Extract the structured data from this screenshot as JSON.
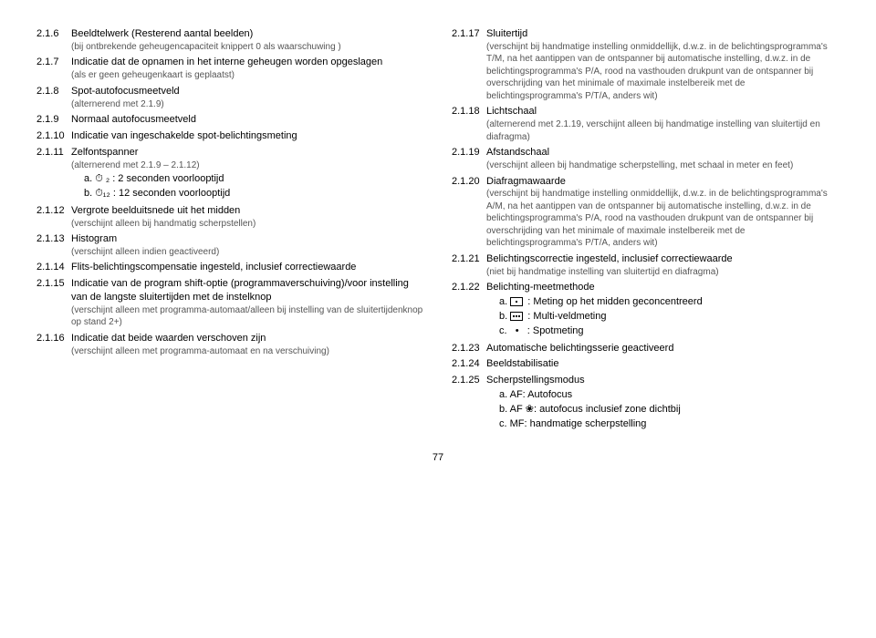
{
  "left": [
    {
      "n": "2.1.6",
      "t": "Beeldtelwerk (Resterend aantal beelden)",
      "s": "(bij ontbrekende geheugencapaciteit knippert 0 als waarschuwing )"
    },
    {
      "n": "2.1.7",
      "t": "Indicatie dat de opnamen in het interne geheugen worden opgeslagen",
      "s": "(als er geen geheugenkaart is geplaatst)"
    },
    {
      "n": "2.1.8",
      "t": "Spot-autofocusmeetveld",
      "s": "(alternerend met 2.1.9)"
    },
    {
      "n": "2.1.9",
      "t": "Normaal autofocusmeetveld"
    },
    {
      "n": "2.1.10",
      "t": "Indicatie van ingeschakelde spot-belichtingsmeting"
    },
    {
      "n": "2.1.11",
      "t": "Zelfontspanner",
      "s": "(alternerend met 2.1.9 – 2.1.12)",
      "lines": [
        "a. ⏱ ₂ : 2 seconden voorlooptijd",
        "b. ⏱₁₂ : 12 seconden voorlooptijd"
      ]
    },
    {
      "n": "2.1.12",
      "t": "Vergrote beelduitsnede uit het midden",
      "s": "(verschijnt alleen bij handmatig scherpstellen)"
    },
    {
      "n": "2.1.13",
      "t": "Histogram",
      "s": "(verschijnt alleen indien geactiveerd)"
    },
    {
      "n": "2.1.14",
      "t": "Flits-belichtingscompensatie ingesteld, inclusief correctiewaarde"
    },
    {
      "n": "2.1.15",
      "t": "Indicatie van de program shift-optie (programmaverschuiving)/voor instelling van de langste sluitertijden met de instelknop",
      "s": "(verschijnt alleen met programma-automaat/alleen bij instelling van de sluitertijdenknop op stand 2+)"
    },
    {
      "n": "2.1.16",
      "t": "Indicatie dat beide waarden verschoven zijn",
      "s": "(verschijnt alleen met programma-automaat en na verschuiving)"
    }
  ],
  "right": [
    {
      "n": "2.1.17",
      "t": "Sluitertijd",
      "s": "(verschijnt bij handmatige instelling onmiddellijk, d.w.z. in de belichtingsprogramma's T/M, na het aantippen van de ontspanner bij automatische instelling, d.w.z. in de belichtingsprogramma's P/A, rood na vasthouden drukpunt van de ontspanner bij overschrijding van het minimale of maximale instelbereik met de belichtingsprogramma's P/T/A, anders wit)"
    },
    {
      "n": "2.1.18",
      "t": "Lichtschaal",
      "s": "(alternerend met 2.1.19, verschijnt alleen bij handmatige instelling van sluitertijd en diafragma)"
    },
    {
      "n": "2.1.19",
      "t": "Afstandschaal",
      "s": "(verschijnt alleen bij handmatige scherpstelling, met schaal in meter en feet)"
    },
    {
      "n": "2.1.20",
      "t": "Diafragmawaarde",
      "s": "(verschijnt bij handmatige instelling onmiddellijk, d.w.z. in de belichtingsprogramma's A/M, na het aantippen van de ontspanner bij automatische instelling, d.w.z. in de belichtingsprogramma's P/A, rood na vasthouden drukpunt van de ontspanner bij overschrijding van het minimale of maximale instelbereik met de belichtingsprogramma's P/T/A, anders wit)"
    },
    {
      "n": "2.1.21",
      "t": "Belichtingscorrectie ingesteld, inclusief correctiewaarde",
      "s": "(niet bij handmatige instelling van sluitertijd en diafragma)"
    },
    {
      "n": "2.1.22",
      "t": "Belichting-meetmethode",
      "lines_html": [
        "a. <span class='icon-rect icon-dot'></span> : Meting op het midden geconcentreerd",
        "b. <span class='icon-rect icon-dots'></span> : Multi-veldmeting",
        "c. &nbsp;&nbsp;•&nbsp;&nbsp; : Spotmeting"
      ]
    },
    {
      "n": "2.1.23",
      "t": "Automatische belichtingsserie geactiveerd"
    },
    {
      "n": "2.1.24",
      "t": "Beeldstabilisatie"
    },
    {
      "n": "2.1.25",
      "t": "Scherpstellingsmodus",
      "lines": [
        "a. AF:    Autofocus",
        "b. AF ❀: autofocus inclusief zone dichtbij",
        "c. MF:    handmatige scherpstelling"
      ]
    }
  ],
  "page": "77"
}
